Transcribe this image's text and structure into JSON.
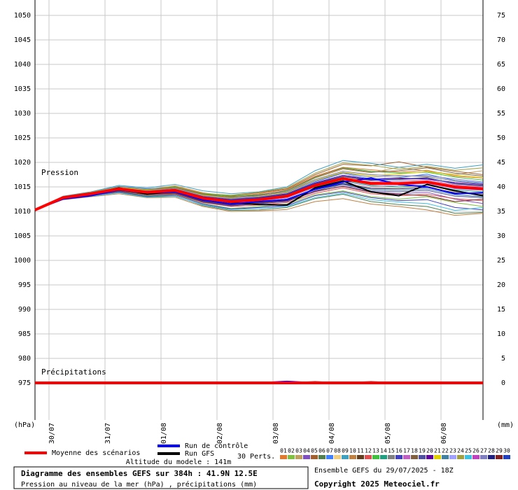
{
  "chart_data": {
    "type": "line",
    "title": "Diagramme des ensembles GEFS sur 384h : 41.9N 12.5E",
    "subtitle": "Pression au niveau de la mer (hPa) , précipitations (mm)",
    "run_label": "Ensemble GEFS du 29/07/2025 - 18Z",
    "copyright": "Copyright 2025 Meteociel.fr",
    "altitude_label": "Altitude du modele : 141m",
    "annotations": [
      "Pression",
      "Précipitations"
    ],
    "y_label": "(hPa)",
    "y2_label": "(mm)",
    "x": [
      0,
      12,
      24,
      36,
      48,
      60,
      72,
      84,
      96,
      108,
      120,
      132,
      144,
      156,
      168,
      180,
      192
    ],
    "xlim": [
      0,
      192
    ],
    "xticks": [
      {
        "value": 6,
        "label": "30/07"
      },
      {
        "value": 30,
        "label": "31/07"
      },
      {
        "value": 54,
        "label": "01/08"
      },
      {
        "value": 78,
        "label": "02/08"
      },
      {
        "value": 102,
        "label": "03/08"
      },
      {
        "value": 126,
        "label": "04/08"
      },
      {
        "value": 150,
        "label": "05/08"
      },
      {
        "value": 174,
        "label": "06/08"
      }
    ],
    "ylim": [
      967.43,
      1053.14
    ],
    "yticks": [
      975,
      980,
      985,
      990,
      995,
      1000,
      1005,
      1010,
      1015,
      1020,
      1025,
      1030,
      1035,
      1040,
      1045,
      1050
    ],
    "y2lim": [
      -7.57,
      78.14
    ],
    "y2ticks": [
      0,
      5,
      10,
      15,
      20,
      25,
      30,
      35,
      40,
      45,
      50,
      55,
      60,
      65,
      70,
      75
    ],
    "grid": true,
    "series": [
      {
        "name": "Moyenne des scénarios",
        "color": "#ff0000",
        "values": [
          1010.3,
          1012.8,
          1013.6,
          1014.6,
          1013.9,
          1014.3,
          1012.7,
          1012.0,
          1012.4,
          1013.1,
          1015.3,
          1016.7,
          1015.7,
          1015.7,
          1016.0,
          1015.0,
          1014.6
        ],
        "precipitation": [
          0,
          0,
          0,
          0,
          0,
          0,
          0,
          0,
          0,
          0,
          0,
          0,
          0,
          0,
          0,
          0,
          0
        ]
      },
      {
        "name": "Run de contrôle",
        "color": "#0000ff",
        "values": [
          1010.3,
          1012.5,
          1013.2,
          1014.4,
          1013.8,
          1014.0,
          1012.3,
          1011.5,
          1012.0,
          1012.4,
          1014.5,
          1016.0,
          1016.8,
          1015.5,
          1015.0,
          1013.6,
          1013.8
        ],
        "precipitation": [
          0,
          0,
          0,
          0,
          0,
          0,
          0,
          0,
          0,
          0.3,
          0,
          0,
          0,
          0,
          0,
          0,
          0
        ]
      },
      {
        "name": "Run GFS",
        "color": "#000000",
        "values": [
          1010.3,
          1012.7,
          1013.5,
          1014.8,
          1013.5,
          1014.2,
          1012.6,
          1011.8,
          1011.4,
          1011.3,
          1014.8,
          1016.2,
          1014.0,
          1013.2,
          1015.5,
          1014.2,
          1013.2
        ],
        "precipitation": [
          0,
          0,
          0,
          0.1,
          0,
          0,
          0,
          0,
          0,
          0,
          0.2,
          0,
          0.2,
          0,
          0,
          0,
          0
        ]
      }
    ],
    "perturbations_label": "30 Perts.",
    "perturbations": [
      {
        "name": "01",
        "color": "#e07a30",
        "values": [
          1010.3,
          1013.0,
          1013.9,
          1015.0,
          1014.5,
          1015.2,
          1013.8,
          1013.0,
          1013.6,
          1014.5,
          1017.2,
          1019.0,
          1018.5,
          1018.0,
          1018.4,
          1017.2,
          1016.8
        ]
      },
      {
        "name": "02",
        "color": "#80c040",
        "values": [
          1010.3,
          1012.6,
          1013.2,
          1014.1,
          1013.2,
          1013.5,
          1011.6,
          1010.6,
          1011.0,
          1011.5,
          1013.4,
          1014.2,
          1013.0,
          1012.5,
          1013.0,
          1011.8,
          1011.0
        ]
      },
      {
        "name": "03",
        "color": "#c0a060",
        "values": [
          1010.3,
          1012.9,
          1013.8,
          1014.9,
          1014.2,
          1014.8,
          1013.4,
          1012.8,
          1013.5,
          1014.0,
          1016.8,
          1018.6,
          1017.9,
          1019.0,
          1018.2,
          1017.5,
          1018.3
        ]
      },
      {
        "name": "04",
        "color": "#8050c0",
        "values": [
          1010.3,
          1012.7,
          1013.4,
          1014.3,
          1013.5,
          1013.8,
          1012.0,
          1011.2,
          1011.5,
          1012.1,
          1014.0,
          1015.2,
          1014.0,
          1013.6,
          1013.9,
          1012.5,
          1011.6
        ]
      },
      {
        "name": "05",
        "color": "#a06030",
        "values": [
          1010.3,
          1012.8,
          1013.7,
          1014.8,
          1014.3,
          1014.9,
          1013.5,
          1013.2,
          1013.8,
          1014.6,
          1017.5,
          1019.6,
          1019.3,
          1020.1,
          1019.0,
          1018.2,
          1017.5
        ]
      },
      {
        "name": "06",
        "color": "#508050",
        "values": [
          1010.3,
          1012.5,
          1013.1,
          1013.9,
          1013.0,
          1013.2,
          1011.2,
          1010.2,
          1010.3,
          1010.8,
          1012.6,
          1013.5,
          1012.0,
          1011.4,
          1011.0,
          1009.6,
          1009.8
        ]
      },
      {
        "name": "07",
        "color": "#4080ff",
        "values": [
          1010.3,
          1012.9,
          1013.9,
          1015.1,
          1014.6,
          1015.0,
          1013.2,
          1012.5,
          1012.9,
          1013.6,
          1016.0,
          1017.8,
          1016.6,
          1016.9,
          1017.6,
          1016.3,
          1015.8
        ]
      },
      {
        "name": "08",
        "color": "#f0d080",
        "values": [
          1010.3,
          1012.7,
          1013.5,
          1014.4,
          1013.7,
          1014.0,
          1012.2,
          1011.6,
          1011.9,
          1012.5,
          1014.6,
          1015.8,
          1014.9,
          1014.8,
          1015.1,
          1014.0,
          1013.6
        ]
      },
      {
        "name": "09",
        "color": "#40a0c0",
        "values": [
          1010.3,
          1013.1,
          1014.0,
          1015.3,
          1014.8,
          1015.5,
          1014.2,
          1013.6,
          1014.0,
          1015.0,
          1018.3,
          1020.4,
          1019.8,
          1019.0,
          1019.6,
          1018.8,
          1019.5
        ]
      },
      {
        "name": "10",
        "color": "#c08040",
        "values": [
          1010.3,
          1012.4,
          1013.0,
          1013.6,
          1012.8,
          1012.9,
          1011.0,
          1010.0,
          1010.1,
          1010.4,
          1012.0,
          1012.6,
          1011.5,
          1011.0,
          1010.3,
          1009.2,
          1009.6
        ]
      },
      {
        "name": "11",
        "color": "#604020",
        "values": [
          1010.3,
          1012.8,
          1013.6,
          1014.7,
          1014.0,
          1014.4,
          1012.9,
          1012.3,
          1012.6,
          1013.4,
          1015.6,
          1017.1,
          1016.3,
          1016.6,
          1016.9,
          1015.6,
          1015.2
        ]
      },
      {
        "name": "12",
        "color": "#e05050",
        "values": [
          1010.3,
          1012.6,
          1013.3,
          1014.2,
          1013.4,
          1013.6,
          1011.8,
          1011.0,
          1011.3,
          1011.8,
          1013.7,
          1014.8,
          1013.6,
          1013.2,
          1013.5,
          1012.6,
          1012.2
        ]
      },
      {
        "name": "13",
        "color": "#40c040",
        "values": [
          1010.3,
          1013.0,
          1013.8,
          1014.9,
          1014.4,
          1015.1,
          1013.6,
          1013.1,
          1013.4,
          1014.2,
          1016.9,
          1018.9,
          1018.2,
          1017.8,
          1018.0,
          1017.0,
          1016.4
        ]
      },
      {
        "name": "14",
        "color": "#20a080",
        "values": [
          1010.3,
          1012.7,
          1013.5,
          1014.5,
          1013.8,
          1014.2,
          1012.5,
          1011.8,
          1012.2,
          1012.9,
          1015.0,
          1016.3,
          1015.3,
          1015.0,
          1015.4,
          1014.4,
          1014.0
        ]
      },
      {
        "name": "15",
        "color": "#808080",
        "values": [
          1010.3,
          1012.9,
          1013.7,
          1014.8,
          1014.1,
          1014.6,
          1013.1,
          1012.6,
          1013.0,
          1013.8,
          1016.2,
          1017.9,
          1017.0,
          1017.3,
          1017.1,
          1016.2,
          1015.6
        ]
      },
      {
        "name": "16",
        "color": "#4040c0",
        "values": [
          1010.3,
          1012.5,
          1013.2,
          1014.0,
          1013.1,
          1013.4,
          1011.5,
          1010.5,
          1010.8,
          1011.2,
          1013.2,
          1014.0,
          1012.8,
          1012.2,
          1012.4,
          1010.8,
          1010.3
        ]
      },
      {
        "name": "17",
        "color": "#c060c0",
        "values": [
          1010.3,
          1012.8,
          1013.6,
          1014.6,
          1014.0,
          1014.3,
          1012.8,
          1012.2,
          1012.5,
          1013.2,
          1015.5,
          1016.9,
          1016.0,
          1016.2,
          1016.5,
          1015.4,
          1015.0
        ]
      },
      {
        "name": "18",
        "color": "#806040",
        "values": [
          1010.3,
          1013.0,
          1013.9,
          1015.0,
          1014.4,
          1014.9,
          1013.5,
          1012.9,
          1013.3,
          1014.3,
          1017.0,
          1018.8,
          1018.0,
          1018.3,
          1018.9,
          1017.8,
          1017.2
        ]
      },
      {
        "name": "19",
        "color": "#5050a0",
        "values": [
          1010.3,
          1012.6,
          1013.3,
          1014.2,
          1013.5,
          1013.7,
          1011.9,
          1011.1,
          1011.6,
          1012.0,
          1014.2,
          1015.5,
          1014.2,
          1014.0,
          1014.3,
          1013.1,
          1012.8
        ]
      },
      {
        "name": "20",
        "color": "#6000a0",
        "values": [
          1010.3,
          1012.8,
          1013.7,
          1014.7,
          1014.1,
          1014.5,
          1013.0,
          1012.4,
          1012.8,
          1013.6,
          1015.8,
          1017.4,
          1016.5,
          1016.8,
          1016.6,
          1015.9,
          1015.5
        ]
      },
      {
        "name": "21",
        "color": "#e0d000",
        "values": [
          1010.3,
          1012.9,
          1013.8,
          1014.9,
          1014.3,
          1014.7,
          1013.3,
          1012.7,
          1013.1,
          1013.9,
          1016.4,
          1018.0,
          1017.3,
          1017.6,
          1018.1,
          1017.4,
          1016.9
        ]
      },
      {
        "name": "22",
        "color": "#4080a0",
        "values": [
          1010.3,
          1012.6,
          1013.4,
          1014.3,
          1013.6,
          1013.9,
          1012.1,
          1011.4,
          1011.8,
          1012.3,
          1014.4,
          1015.6,
          1014.5,
          1014.3,
          1014.6,
          1013.4,
          1013.0
        ]
      },
      {
        "name": "23",
        "color": "#a0a0ff",
        "values": [
          1010.3,
          1012.7,
          1013.5,
          1014.5,
          1013.8,
          1014.1,
          1012.4,
          1011.7,
          1012.1,
          1012.7,
          1014.8,
          1016.1,
          1015.1,
          1015.3,
          1015.7,
          1014.6,
          1014.3
        ]
      },
      {
        "name": "24",
        "color": "#a0a040",
        "values": [
          1010.3,
          1013.0,
          1013.9,
          1015.0,
          1014.5,
          1015.0,
          1013.7,
          1013.3,
          1013.9,
          1014.8,
          1017.8,
          1019.9,
          1019.4,
          1018.6,
          1019.2,
          1018.4,
          1018.9
        ]
      },
      {
        "name": "25",
        "color": "#40c0e0",
        "values": [
          1010.3,
          1012.5,
          1013.1,
          1013.8,
          1012.9,
          1013.1,
          1011.3,
          1010.4,
          1010.6,
          1011.0,
          1012.8,
          1013.7,
          1012.4,
          1011.9,
          1011.6,
          1010.2,
          1010.8
        ]
      },
      {
        "name": "26",
        "color": "#c040c0",
        "values": [
          1010.3,
          1012.8,
          1013.6,
          1014.6,
          1013.9,
          1014.3,
          1012.7,
          1012.0,
          1012.4,
          1013.1,
          1015.4,
          1016.5,
          1015.9,
          1015.5,
          1016.2,
          1014.7,
          1014.4
        ]
      },
      {
        "name": "27",
        "color": "#8080c0",
        "values": [
          1010.3,
          1012.9,
          1013.8,
          1014.8,
          1014.2,
          1014.7,
          1013.2,
          1012.6,
          1013.2,
          1014.0,
          1016.5,
          1018.2,
          1017.5,
          1017.2,
          1017.3,
          1016.6,
          1016.0
        ]
      },
      {
        "name": "28",
        "color": "#202080",
        "values": [
          1010.3,
          1012.7,
          1013.4,
          1014.4,
          1013.6,
          1013.9,
          1012.2,
          1011.5,
          1011.9,
          1012.5,
          1014.5,
          1015.7,
          1014.7,
          1014.6,
          1014.9,
          1013.8,
          1013.4
        ]
      },
      {
        "name": "29",
        "color": "#802020",
        "values": [
          1010.3,
          1012.6,
          1013.3,
          1014.2,
          1013.4,
          1013.7,
          1012.0,
          1011.3,
          1011.7,
          1012.2,
          1014.1,
          1015.1,
          1013.9,
          1013.5,
          1013.2,
          1012.0,
          1012.5
        ]
      },
      {
        "name": "30",
        "color": "#2040c0",
        "values": [
          1010.3,
          1012.8,
          1013.6,
          1014.7,
          1014.1,
          1014.4,
          1012.9,
          1012.3,
          1012.7,
          1013.5,
          1015.7,
          1017.2,
          1016.4,
          1016.5,
          1016.8,
          1015.7,
          1015.3
        ]
      }
    ]
  }
}
